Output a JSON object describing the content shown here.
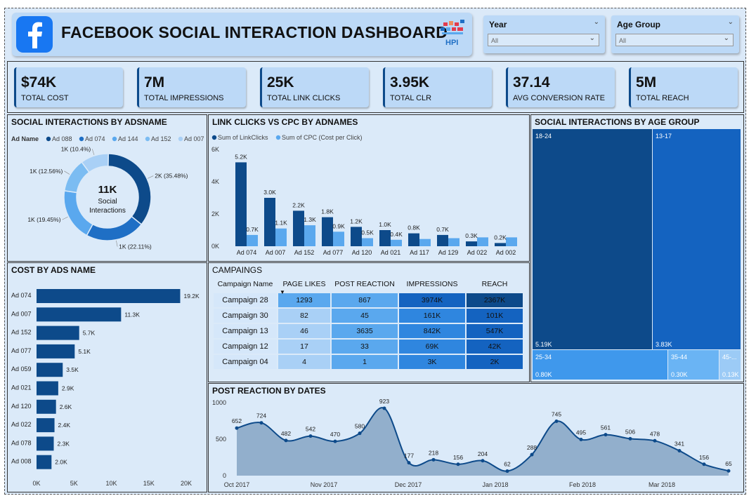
{
  "header": {
    "title": "FACEBOOK SOCIAL INTERACTION DASHBOARD",
    "logo_text": "HPI",
    "brand_icon": "facebook-icon"
  },
  "slicers": [
    {
      "title": "Year",
      "value": "All"
    },
    {
      "title": "Age Group",
      "value": "All"
    }
  ],
  "kpis": [
    {
      "value": "$74K",
      "label": "TOTAL COST"
    },
    {
      "value": "7M",
      "label": "TOTAL IMPRESSIONS"
    },
    {
      "value": "25K",
      "label": "TOTAL LINK CLICKS"
    },
    {
      "value": "3.95K",
      "label": "TOTAL CLR"
    },
    {
      "value": "37.14",
      "label": "AVG CONVERSION RATE"
    },
    {
      "value": "5M",
      "label": "TOTAL REACH"
    }
  ],
  "colors": {
    "dark": "#0d4a8a",
    "mid": "#1f6fc5",
    "light": "#5aa8ee",
    "lighter": "#a9d0f6",
    "area": "#8aa8c7"
  },
  "chart_data": [
    {
      "id": "donut",
      "type": "pie",
      "title": "SOCIAL INTERACTIONS BY ADSNAME",
      "legend_title": "Ad Name",
      "center_value": "11K",
      "center_label_1": "Social",
      "center_label_2": "Interactions",
      "slices": [
        {
          "name": "Ad 088",
          "pct": 35.48,
          "label": "2K (35.48%)"
        },
        {
          "name": "Ad 074",
          "pct": 22.11,
          "label": "1K (22.11%)"
        },
        {
          "name": "Ad 144",
          "pct": 19.45,
          "label": "1K (19.45%)"
        },
        {
          "name": "Ad 152",
          "pct": 12.56,
          "label": "1K (12.56%)"
        },
        {
          "name": "Ad 007",
          "pct": 10.4,
          "label": "1K (10.4%)"
        }
      ]
    },
    {
      "id": "clicks_cpc",
      "type": "bar",
      "title": "LINK CLICKS VS CPC BY ADNAMES",
      "categories": [
        "Ad 074",
        "Ad 007",
        "Ad 152",
        "Ad 077",
        "Ad 120",
        "Ad 021",
        "Ad 117",
        "Ad 129",
        "Ad 022",
        "Ad 002"
      ],
      "series": [
        {
          "name": "Sum of LinkClicks",
          "values": [
            5200,
            3000,
            2200,
            1800,
            1200,
            1000,
            800,
            700,
            300,
            200
          ],
          "labels": [
            "5.2K",
            "3.0K",
            "2.2K",
            "1.8K",
            "1.2K",
            "1.0K",
            "0.8K",
            "0.7K",
            "0.3K",
            "0.2K"
          ]
        },
        {
          "name": "Sum of CPC (Cost per Click)",
          "values": [
            700,
            1100,
            1300,
            900,
            500,
            400,
            450,
            500,
            550,
            550
          ],
          "labels": [
            "0.7K",
            "1.1K",
            "1.3K",
            "0.9K",
            "0.5K",
            "0.4K",
            "",
            "",
            "",
            ""
          ]
        }
      ],
      "y_ticks": [
        "0K",
        "2K",
        "4K",
        "6K"
      ],
      "ylim": [
        0,
        6000
      ]
    },
    {
      "id": "age_treemap",
      "type": "heatmap",
      "title": "SOCIAL INTERACTIONS BY AGE GROUP",
      "cells": [
        {
          "name": "18-24",
          "value": "5.19K"
        },
        {
          "name": "13-17",
          "value": "3.83K"
        },
        {
          "name": "25-34",
          "value": "0.80K"
        },
        {
          "name": "35-44",
          "value": "0.30K"
        },
        {
          "name": "45-...",
          "value": "0.13K"
        }
      ]
    },
    {
      "id": "cost_bars",
      "type": "bar",
      "title": "COST BY ADS NAME",
      "categories": [
        "Ad 074",
        "Ad 007",
        "Ad 152",
        "Ad 077",
        "Ad 059",
        "Ad 021",
        "Ad 120",
        "Ad 022",
        "Ad 078",
        "Ad 008"
      ],
      "values": [
        19200,
        11300,
        5700,
        5100,
        3500,
        2900,
        2600,
        2400,
        2300,
        2000
      ],
      "labels": [
        "19.2K",
        "11.3K",
        "5.7K",
        "5.1K",
        "3.5K",
        "2.9K",
        "2.6K",
        "2.4K",
        "2.3K",
        "2.0K"
      ],
      "x_ticks": [
        "0K",
        "5K",
        "10K",
        "15K",
        "20K"
      ],
      "xlim": [
        0,
        20000
      ]
    },
    {
      "id": "campaigns",
      "type": "table",
      "title": "CAMPAINGS",
      "columns": [
        "Campaign Name",
        "PAGE LIKES",
        "POST REACTION",
        "IMPRESSIONS",
        "REACH"
      ],
      "rows": [
        [
          "Campaign 28",
          "1293",
          "867",
          "3974K",
          "2367K"
        ],
        [
          "Campaign 30",
          "82",
          "45",
          "161K",
          "101K"
        ],
        [
          "Campaign 13",
          "46",
          "3635",
          "842K",
          "547K"
        ],
        [
          "Campaign 12",
          "17",
          "33",
          "69K",
          "42K"
        ],
        [
          "Campaign 04",
          "4",
          "1",
          "3K",
          "2K"
        ]
      ]
    },
    {
      "id": "reactions",
      "type": "area",
      "title": "POST REACTION BY DATES",
      "points": [
        652,
        724,
        482,
        542,
        470,
        580,
        923,
        177,
        218,
        156,
        204,
        62,
        288,
        745,
        495,
        561,
        506,
        478,
        341,
        156,
        65
      ],
      "labels": [
        "652",
        "724",
        "482",
        "542",
        "470",
        "580",
        "923",
        "177",
        "218",
        "156",
        "204",
        "62",
        "288",
        "745",
        "495",
        "561",
        "506",
        "478",
        "341",
        "156",
        "65"
      ],
      "x_ticks": [
        "Oct 2017",
        "Nov 2017",
        "Dec 2017",
        "Jan 2018",
        "Feb 2018",
        "Mar 2018"
      ],
      "y_ticks": [
        "0",
        "500",
        "1000"
      ],
      "ylim": [
        0,
        1000
      ]
    }
  ]
}
